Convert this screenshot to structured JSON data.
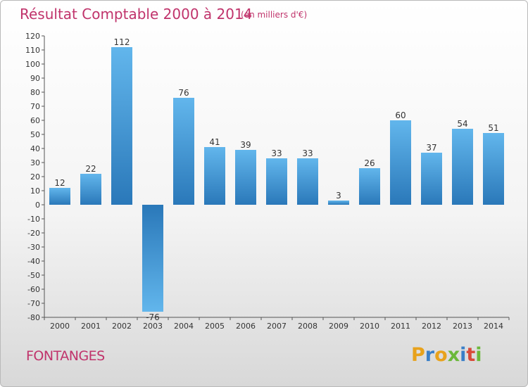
{
  "title": "Résultat Comptable 2000 à 2014",
  "subtitle": "(en milliers d'€)",
  "place": "FONTANGES",
  "logo": {
    "letters": [
      "P",
      "r",
      "o",
      "x",
      "i",
      "t",
      "i"
    ],
    "colors": [
      "#e8a21c",
      "#3a7fc8",
      "#e8a21c",
      "#6bb83a",
      "#3a7fc8",
      "#d94a3a",
      "#6bb83a"
    ]
  },
  "colors": {
    "bar_top": "#62b6ec",
    "bar_bottom": "#2a78b9",
    "title": "#c0336b"
  },
  "chart_data": {
    "type": "bar",
    "categories": [
      "2000",
      "2001",
      "2002",
      "2003",
      "2004",
      "2005",
      "2006",
      "2007",
      "2008",
      "2009",
      "2010",
      "2011",
      "2012",
      "2013",
      "2014"
    ],
    "values": [
      12,
      22,
      112,
      -76,
      76,
      41,
      39,
      33,
      33,
      3,
      26,
      60,
      37,
      54,
      51
    ],
    "ylim": [
      -80,
      120
    ],
    "yticks": [
      120,
      110,
      100,
      90,
      80,
      70,
      60,
      50,
      40,
      30,
      20,
      10,
      0,
      -10,
      -20,
      -30,
      -40,
      -50,
      -60,
      -70,
      -80
    ],
    "grid": false
  }
}
